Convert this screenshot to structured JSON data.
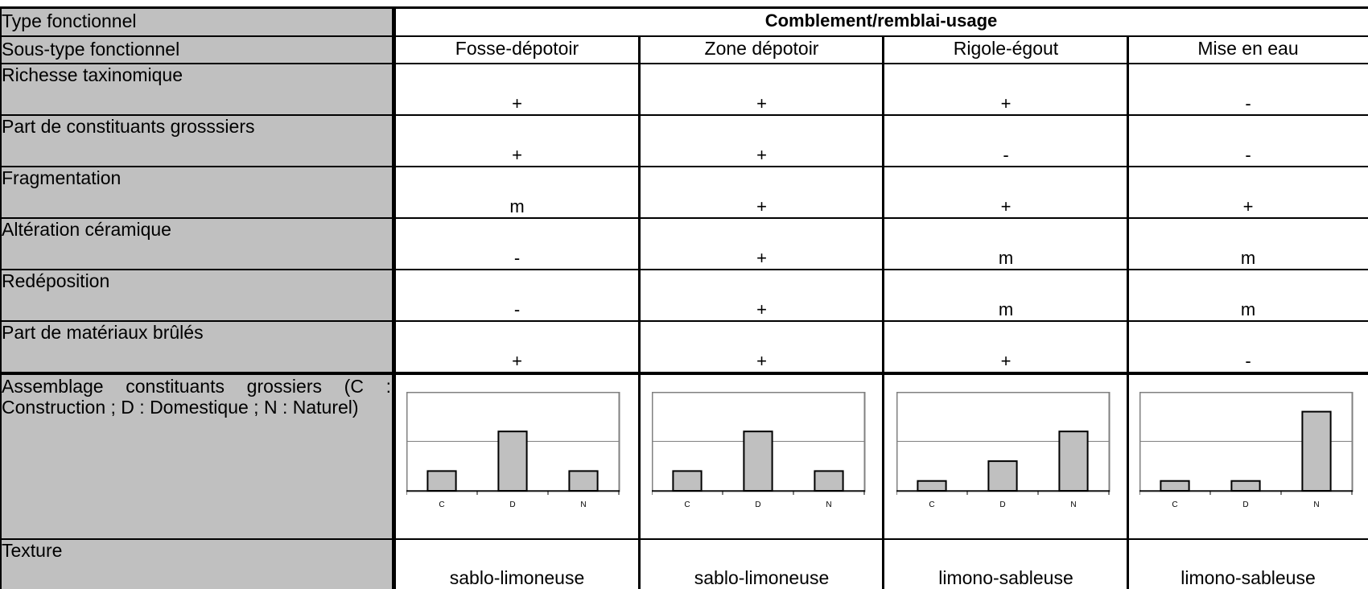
{
  "table": {
    "type_label": "Type fonctionnel",
    "type_value": "Comblement/remblai-usage",
    "subtype_label": "Sous-type fonctionnel",
    "subtypes": [
      "Fosse-dépotoir",
      "Zone dépotoir",
      "Rigole-égout",
      "Mise en eau"
    ],
    "rows": [
      {
        "label": "Richesse taxinomique",
        "values": [
          "+",
          "+",
          "+",
          "-"
        ]
      },
      {
        "label": "Part de constituants grosssiers",
        "values": [
          "+",
          "+",
          "-",
          "-"
        ]
      },
      {
        "label": "Fragmentation",
        "values": [
          "m",
          "+",
          "+",
          "+"
        ]
      },
      {
        "label": "Altération céramique",
        "values": [
          "-",
          "+",
          "m",
          "m"
        ]
      },
      {
        "label": "Redéposition",
        "values": [
          "-",
          "+",
          "m",
          "m"
        ]
      },
      {
        "label": "Part de matériaux brûlés",
        "values": [
          "+",
          "+",
          "+",
          "-"
        ]
      }
    ],
    "assemblage_label": "Assemblage constituants grossiers (C : Construction ; D : Domestique ; N : Naturel)",
    "texture_label": "Texture",
    "textures": [
      "sablo-limoneuse",
      "sablo-limoneuse",
      "limono-sableuse",
      "limono-sableuse"
    ]
  },
  "chart_data": [
    {
      "type": "bar",
      "categories": [
        "C",
        "D",
        "N"
      ],
      "values": [
        1,
        3,
        1
      ],
      "ylim": [
        0,
        5
      ],
      "gridline": 2.5
    },
    {
      "type": "bar",
      "categories": [
        "C",
        "D",
        "N"
      ],
      "values": [
        1,
        3,
        1
      ],
      "ylim": [
        0,
        5
      ],
      "gridline": 2.5
    },
    {
      "type": "bar",
      "categories": [
        "C",
        "D",
        "N"
      ],
      "values": [
        0.5,
        1.5,
        3
      ],
      "ylim": [
        0,
        5
      ],
      "gridline": 2.5
    },
    {
      "type": "bar",
      "categories": [
        "C",
        "D",
        "N"
      ],
      "values": [
        0.5,
        0.5,
        4
      ],
      "ylim": [
        0,
        5
      ],
      "gridline": 2.5
    }
  ],
  "colors": {
    "label_bg": "#c0c0c0",
    "bar_fill": "#c0c0c0",
    "border": "#000000",
    "chart_frame": "#808080"
  }
}
